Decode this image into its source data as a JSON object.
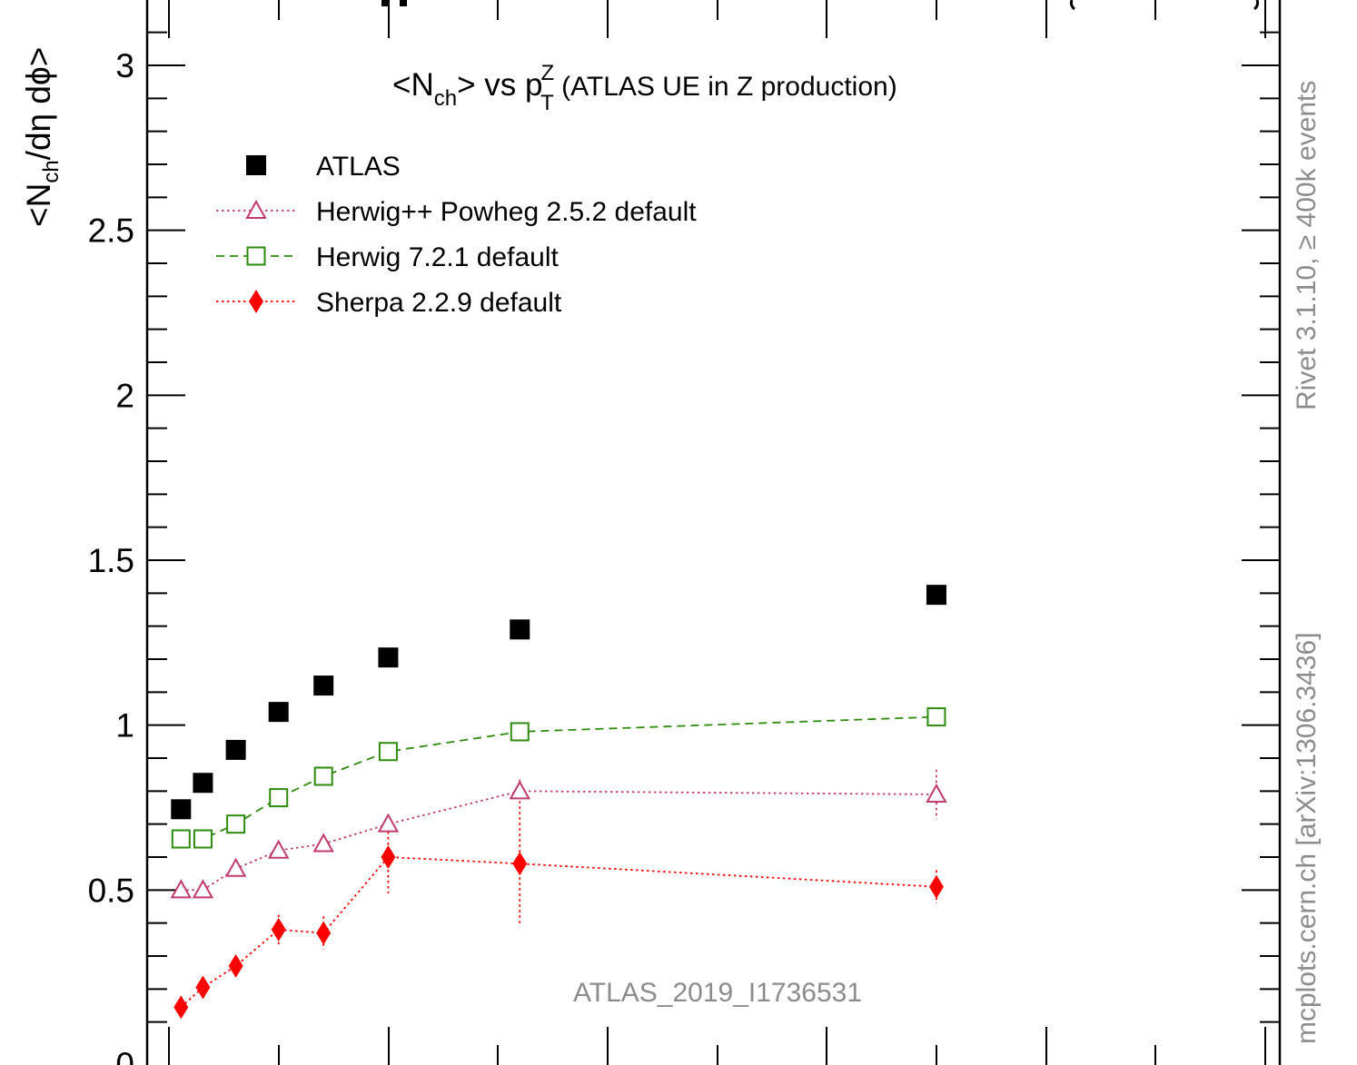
{
  "chart_data": {
    "type": "scatter",
    "title_prefix": "<N",
    "title_sub1": "ch",
    "title_mid": "> vs p",
    "title_sup": "Z",
    "title_sub2": "T",
    "title_suffix": " (ATLAS UE in Z production)",
    "ylabel_prefix": "<N",
    "ylabel_sub": "ch",
    "ylabel_suffix": "/dη dϕ>",
    "ylim": [
      0,
      3.2
    ],
    "xlim": [
      0,
      1.0
    ],
    "y_ticks": [
      "0.5",
      "1",
      "1.5",
      "2",
      "2.5",
      "3"
    ],
    "y_tick_values": [
      0.5,
      1,
      1.5,
      2,
      2.5,
      3
    ],
    "analysis_label": "ATLAS_2019_I1736531",
    "rivet_label": "Rivet 3.1.10, ≥ 400k events",
    "source_label": "mcplots.cern.ch [arXiv:1306.3436]",
    "x": [
      0.011,
      0.031,
      0.061,
      0.1,
      0.141,
      0.2,
      0.32,
      0.7
    ],
    "series": [
      {
        "name": "ATLAS",
        "marker": "filled-square",
        "line": "none",
        "color": "#000000",
        "values": [
          0.745,
          0.825,
          0.925,
          1.04,
          1.12,
          1.205,
          1.29,
          1.395
        ],
        "errors": [
          0,
          0,
          0,
          0,
          0,
          0,
          0,
          0
        ]
      },
      {
        "name": "Herwig++ Powheg 2.5.2 default",
        "marker": "open-triangle",
        "line": "dotted",
        "color": "#c23b6e",
        "values": [
          0.5,
          0.5,
          0.565,
          0.62,
          0.64,
          0.7,
          0.8,
          0.79
        ],
        "errors": [
          0,
          0,
          0.01,
          0.01,
          0.01,
          0.015,
          0.035,
          0.075
        ]
      },
      {
        "name": "Herwig 7.2.1 default",
        "marker": "open-square",
        "line": "dashed",
        "color": "#2e8b0e",
        "values": [
          0.655,
          0.655,
          0.7,
          0.78,
          0.845,
          0.92,
          0.98,
          1.025
        ],
        "errors": [
          0.015,
          0.015,
          0.015,
          0.02,
          0.02,
          0.02,
          0.02,
          0.025
        ]
      },
      {
        "name": "Sherpa 2.2.9 default",
        "marker": "filled-diamond",
        "line": "dotted",
        "color": "#ff0000",
        "values": [
          0.145,
          0.205,
          0.27,
          0.38,
          0.37,
          0.6,
          0.58,
          0.51
        ],
        "errors": [
          0.015,
          0.015,
          0.02,
          0.045,
          0.05,
          0.11,
          0.19,
          0.05
        ]
      }
    ],
    "legend_position": "top-left"
  }
}
